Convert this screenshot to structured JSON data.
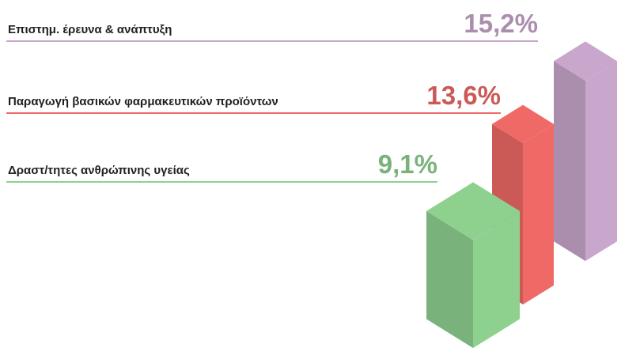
{
  "chart_data": {
    "type": "bar",
    "categories": [
      "Επιστημ. έρευνα & ανάπτυξη",
      "Παραγωγή βασικών φαρμακευτικών προϊόντων",
      "Δραστ/τητες ανθρώπινης υγείας"
    ],
    "values": [
      15.2,
      13.6,
      9.1
    ],
    "value_labels": [
      "15,2%",
      "13,6%",
      "9,1%"
    ],
    "colors": [
      "#c9a6cc",
      "#ef6a66",
      "#8ed18f"
    ]
  }
}
